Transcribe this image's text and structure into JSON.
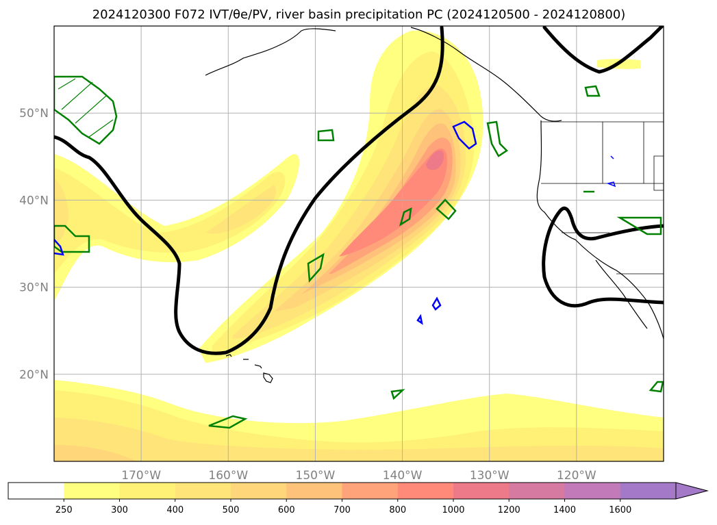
{
  "title": "2024120300 F072 IVT/θe/PV, river basin precipitation PC (2024120500 - 2024120800)",
  "map": {
    "lon_range": [
      -180,
      -110
    ],
    "lat_range": [
      10,
      60
    ],
    "lat_ticks": [
      {
        "value": 50,
        "label": "50°N"
      },
      {
        "value": 40,
        "label": "40°N"
      },
      {
        "value": 30,
        "label": "30°N"
      },
      {
        "value": 20,
        "label": "20°N"
      }
    ],
    "lon_ticks": [
      {
        "value": -170,
        "label": "170°W"
      },
      {
        "value": -160,
        "label": "160°W"
      },
      {
        "value": -150,
        "label": "150°W"
      },
      {
        "value": -140,
        "label": "140°W"
      },
      {
        "value": -130,
        "label": "130°W"
      },
      {
        "value": -120,
        "label": "120°W"
      }
    ],
    "gridlines": true
  },
  "colorbar": {
    "labels": [
      "250",
      "300",
      "400",
      "500",
      "600",
      "700",
      "800",
      "1000",
      "1200",
      "1400",
      "1600"
    ],
    "colors": [
      "#ffffff",
      "#ffff80",
      "#fff176",
      "#ffe47a",
      "#ffd67a",
      "#ffc27a",
      "#ffa47a",
      "#ff8a7a",
      "#ec7a88",
      "#d67aa2",
      "#c27ab8",
      "#a47ac8"
    ],
    "extend": "max"
  },
  "colors": {
    "contour_black": "#000000",
    "contour_green": "#008000",
    "contour_blue": "#0000ff",
    "coast": "#000000",
    "grid": "#b0b0b0"
  }
}
